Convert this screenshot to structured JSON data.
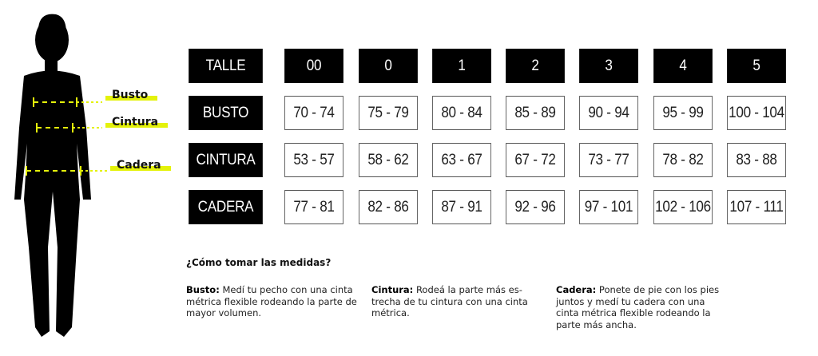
{
  "figure": {
    "labels": {
      "busto": "Busto",
      "cintura": "Cintura",
      "cadera": "Cadera"
    },
    "highlight_color": "#e4f20a"
  },
  "table": {
    "header_label": "TALLE",
    "sizes": [
      "00",
      "0",
      "1",
      "2",
      "3",
      "4",
      "5"
    ],
    "rows": [
      {
        "label": "BUSTO",
        "values": [
          "70 - 74",
          "75 - 79",
          "80 - 84",
          "85 - 89",
          "90 - 94",
          "95 - 99",
          "100 - 104"
        ]
      },
      {
        "label": "CINTURA",
        "values": [
          "53 - 57",
          "58 - 62",
          "63 - 67",
          "67 - 72",
          "73 - 77",
          "78 - 82",
          "83 - 88"
        ]
      },
      {
        "label": "CADERA",
        "values": [
          "77 - 81",
          "82 - 86",
          "87 - 91",
          "92 - 96",
          "97 - 101",
          "102 - 106",
          "107 - 111"
        ]
      }
    ]
  },
  "instructions": {
    "title": "¿Cómo tomar las medidas?",
    "items": [
      {
        "term": "Busto:",
        "text": " Medí tu pecho con una cinta métrica flexible rodeando la parte de mayor volumen."
      },
      {
        "term": "Cintura:",
        "text": " Rodeá la parte más es-trecha de tu cintura con una cinta métrica."
      },
      {
        "term": "Cadera:",
        "text": " Ponete de pie con los pies juntos y medí tu cadera con una cinta métrica flexible rodeando la parte más ancha."
      }
    ]
  }
}
